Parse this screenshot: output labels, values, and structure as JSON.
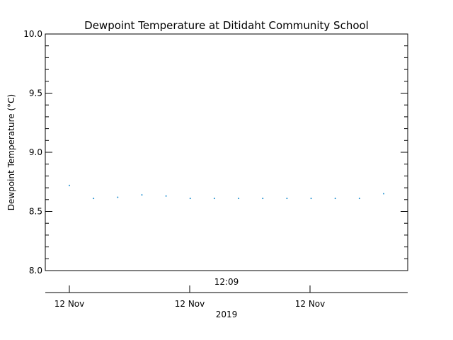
{
  "chart_data": {
    "type": "scatter",
    "title": "Dewpoint Temperature at Ditidaht Community School",
    "ylabel": "Dewpoint Temperature (°C)",
    "xlabel": "2019",
    "ylim": [
      8.0,
      10.0
    ],
    "yticks": [
      "10.0",
      "9.5",
      "9.0",
      "8.5",
      "8.0"
    ],
    "x_top_label": "12:09",
    "x_tick_labels": [
      "12 Nov",
      "12 Nov",
      "12 Nov"
    ],
    "grid": false,
    "point_color": "#1f8fd0",
    "series": [
      {
        "values": [
          8.72,
          8.61,
          8.62,
          8.64,
          8.63,
          8.61,
          8.61,
          8.61,
          8.61,
          8.61,
          8.61,
          8.61,
          8.61,
          8.65
        ]
      }
    ]
  }
}
